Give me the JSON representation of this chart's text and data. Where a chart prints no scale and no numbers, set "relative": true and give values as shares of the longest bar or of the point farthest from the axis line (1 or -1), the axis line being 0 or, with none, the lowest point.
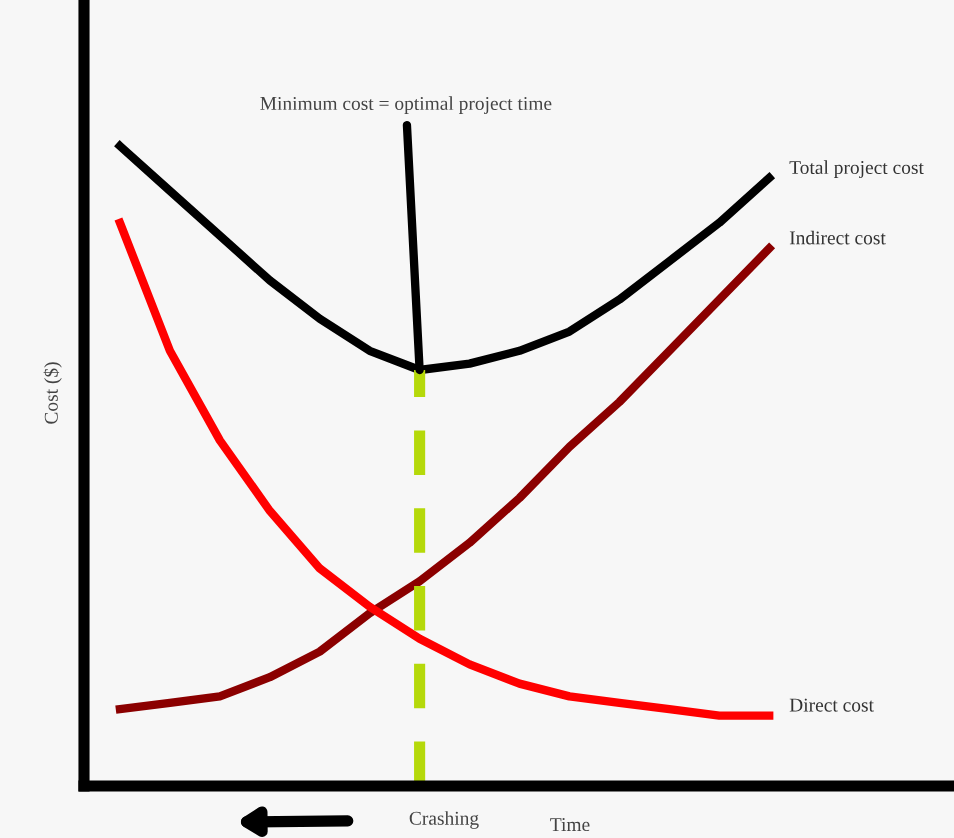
{
  "chart_data": {
    "type": "line",
    "relative": true,
    "ylabel": "Cost ($)",
    "xlabel": "Time",
    "categories": [
      null,
      null,
      null,
      null,
      null,
      null,
      null,
      null,
      null,
      null,
      null,
      null,
      null,
      null
    ],
    "series": [
      {
        "name": "Total project cost",
        "color": "#000000",
        "values": [
          1,
          0.93,
          0.86,
          0.79,
          0.73,
          0.68,
          0.65,
          0.66,
          0.68,
          0.71,
          0.76,
          0.82,
          0.88,
          0.95
        ]
      },
      {
        "name": "Indirect cost",
        "color": "#8b0000",
        "values": [
          0.12,
          0.13,
          0.14,
          0.17,
          0.21,
          0.27,
          0.32,
          0.38,
          0.45,
          0.53,
          0.6,
          0.68,
          0.76,
          0.84
        ]
      },
      {
        "name": "Direct cost",
        "color": "#ff0000",
        "values": [
          0.88,
          0.68,
          0.54,
          0.43,
          0.34,
          0.28,
          0.23,
          0.19,
          0.16,
          0.14,
          0.13,
          0.12,
          0.11,
          0.11
        ]
      }
    ],
    "annotations": [
      "Minimum cost = optimal project time",
      "Crashing"
    ],
    "legend": false,
    "marker": "none",
    "line_style": "solid"
  }
}
